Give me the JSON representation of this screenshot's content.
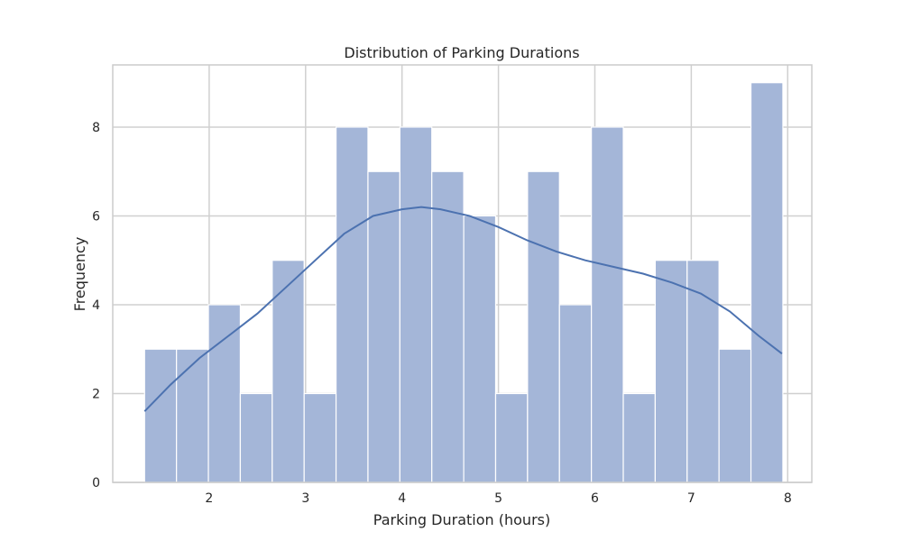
{
  "chart_data": {
    "type": "bar",
    "subtype": "histogram-with-kde",
    "title": "Distribution of Parking Durations",
    "xlabel": "Parking Duration (hours)",
    "ylabel": "Frequency",
    "xlim": [
      1.0,
      8.25
    ],
    "ylim": [
      0,
      9.4
    ],
    "xticks": [
      2,
      3,
      4,
      5,
      6,
      7,
      8
    ],
    "yticks": [
      0,
      2,
      4,
      6,
      8
    ],
    "grid": true,
    "bin_start": 1.33,
    "bin_width": 0.331,
    "values": [
      3,
      3,
      4,
      2,
      5,
      2,
      8,
      7,
      8,
      7,
      6,
      2,
      7,
      4,
      8,
      2,
      5,
      5,
      3,
      9
    ],
    "kde": {
      "x": [
        1.33,
        1.6,
        1.9,
        2.2,
        2.5,
        2.8,
        3.1,
        3.4,
        3.7,
        4.0,
        4.2,
        4.4,
        4.7,
        5.0,
        5.3,
        5.6,
        5.9,
        6.2,
        6.5,
        6.8,
        7.1,
        7.4,
        7.7,
        7.94
      ],
      "y": [
        1.6,
        2.2,
        2.8,
        3.3,
        3.8,
        4.4,
        5.0,
        5.6,
        6.0,
        6.15,
        6.2,
        6.15,
        6.0,
        5.75,
        5.45,
        5.2,
        5.0,
        4.85,
        4.7,
        4.5,
        4.25,
        3.85,
        3.3,
        2.9
      ]
    },
    "colors": {
      "bar_fill": "#a4b6d8",
      "bar_stroke": "#ffffff",
      "kde_line": "#4c72b0",
      "grid": "#d0d0d0",
      "frame": "#cccccc"
    }
  }
}
